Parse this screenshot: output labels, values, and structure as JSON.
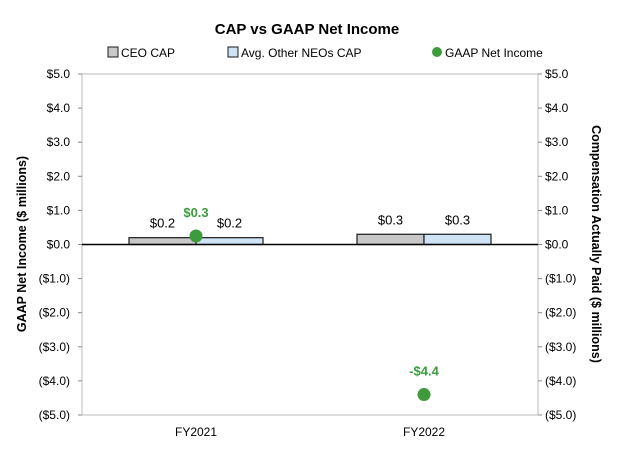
{
  "chart_data": {
    "type": "bar",
    "title": "CAP vs GAAP Net Income",
    "categories": [
      "FY2021",
      "FY2022"
    ],
    "series": [
      {
        "name": "CEO CAP",
        "type": "bar",
        "axis": "right",
        "values": [
          0.2,
          0.3
        ],
        "labels": [
          "$0.2",
          "$0.3"
        ],
        "color": "#c8c8c8"
      },
      {
        "name": "Avg. Other NEOs CAP",
        "type": "bar",
        "axis": "right",
        "values": [
          0.2,
          0.3
        ],
        "labels": [
          "$0.2",
          "$0.3"
        ],
        "color": "#cfe3f7"
      },
      {
        "name": "GAAP Net Income",
        "type": "scatter",
        "axis": "left",
        "values": [
          0.25,
          -4.4
        ],
        "labels": [
          "$0.3",
          "-$4.4"
        ],
        "color": "#3d9a3d"
      }
    ],
    "ylabel": "GAAP Net Income ($ millions)",
    "y2label": "Compensation Actually Paid ($ millions)",
    "ylim": [
      -5,
      5
    ],
    "y2lim": [
      -5,
      5
    ],
    "yticks": [
      5,
      4,
      3,
      2,
      1,
      0,
      -1,
      -2,
      -3,
      -4,
      -5
    ],
    "ytick_labels": [
      "$5.0",
      "$4.0",
      "$3.0",
      "$2.0",
      "$1.0",
      "$0.0",
      "($1.0)",
      "($2.0)",
      "($3.0)",
      "($4.0)",
      "($5.0)"
    ],
    "legend_position": "top",
    "grid": false
  }
}
